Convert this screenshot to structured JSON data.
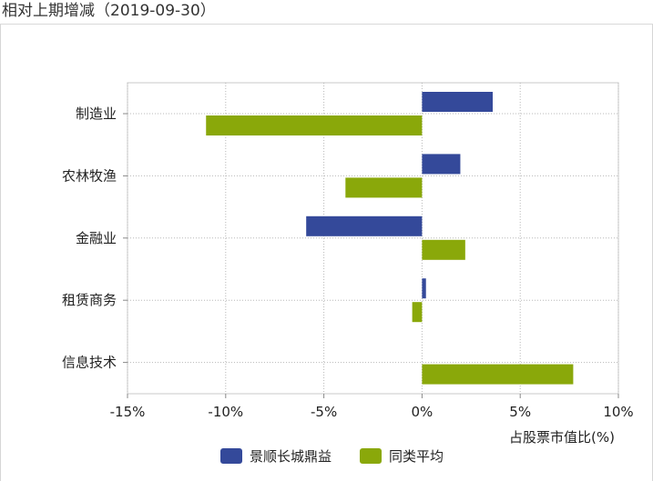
{
  "header": {
    "title": "相对上期增减（2019-09-30）"
  },
  "chart_data": {
    "type": "bar",
    "orientation": "horizontal",
    "title": "",
    "categories": [
      "制造业",
      "农林牧渔",
      "金融业",
      "租赁商务",
      "信息技术"
    ],
    "series": [
      {
        "name": "景顺长城鼎益",
        "color": "#34499a",
        "values": [
          3.6,
          1.95,
          -5.9,
          0.2,
          0.0
        ]
      },
      {
        "name": "同类平均",
        "color": "#8aa80a",
        "values": [
          -11.0,
          -3.9,
          2.2,
          -0.5,
          7.7
        ]
      }
    ],
    "xlim": [
      -15,
      10
    ],
    "xticks": [
      "-15%",
      "-10%",
      "-5%",
      "0%",
      "5%",
      "10%"
    ],
    "xlabel": "占股票市值比(%)",
    "ylabel": "",
    "grid": true,
    "legend_position": "bottom"
  }
}
